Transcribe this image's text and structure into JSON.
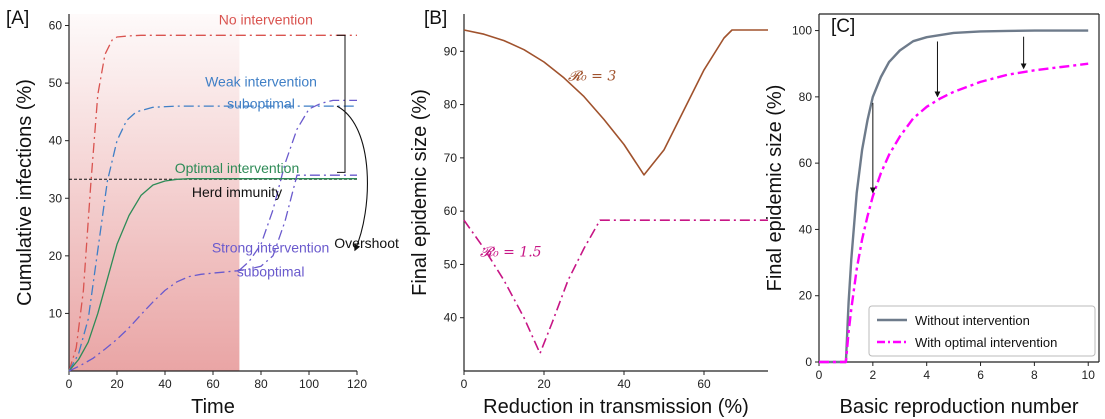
{
  "chart_data": [
    {
      "type": "line",
      "panel": "[A]",
      "xlabel": "Time",
      "ylabel": "Cumulative infections (%)",
      "xlim": [
        0,
        120
      ],
      "ylim": [
        0,
        62
      ],
      "xticks": [
        0,
        20,
        40,
        60,
        80,
        100,
        120
      ],
      "yticks": [
        10,
        20,
        30,
        40,
        50,
        60
      ],
      "shaded_region_x": [
        0,
        71
      ],
      "herd_immunity_level": 33.3,
      "colors": {
        "no": "#d9534f",
        "weak": "#3f7fc6",
        "opt": "#2e8b57",
        "strong": "#6a5acd",
        "shade": "#e8a0a0"
      },
      "series": [
        {
          "name": "No intervention",
          "style": "dashdot",
          "color": "#d9534f",
          "x": [
            0,
            3,
            6,
            9,
            12,
            15,
            18,
            20,
            25,
            30,
            40,
            60,
            80,
            100,
            120
          ],
          "y": [
            0,
            4,
            14,
            32,
            48,
            55,
            57.5,
            58,
            58.2,
            58.3,
            58.3,
            58.3,
            58.3,
            58.3,
            58.3
          ]
        },
        {
          "name": "Weak intervention suboptimal",
          "style": "dashdot",
          "color": "#3f7fc6",
          "x": [
            0,
            4,
            8,
            12,
            16,
            20,
            24,
            28,
            35,
            45,
            60,
            80,
            100,
            120
          ],
          "y": [
            0,
            3,
            9,
            21,
            33,
            40,
            43.5,
            45,
            45.8,
            46,
            46,
            46,
            46,
            46
          ]
        },
        {
          "name": "Weak intervention suboptimal (continued)",
          "style": "dashdot",
          "color": "#6a5acd",
          "x": [
            71,
            75,
            80,
            85,
            90,
            95,
            100,
            105,
            110,
            115,
            120
          ],
          "y": [
            17.5,
            19,
            22,
            28,
            36,
            42,
            45.5,
            46.5,
            47,
            47,
            47
          ]
        },
        {
          "name": "Optimal intervention",
          "style": "solid",
          "color": "#2e8b57",
          "x": [
            0,
            4,
            8,
            12,
            16,
            20,
            25,
            30,
            35,
            40,
            45,
            50,
            60,
            80,
            100,
            120
          ],
          "y": [
            0,
            2,
            5,
            10,
            16,
            22,
            27,
            30.5,
            32.3,
            33,
            33.3,
            33.4,
            33.4,
            33.4,
            33.4,
            33.4
          ]
        },
        {
          "name": "Strong intervention suboptimal",
          "style": "dashdot",
          "color": "#6a5acd",
          "x": [
            0,
            5,
            10,
            15,
            20,
            25,
            30,
            35,
            40,
            45,
            50,
            55,
            60,
            65,
            70,
            75,
            80,
            85,
            90,
            95,
            100,
            105,
            110,
            115,
            120
          ],
          "y": [
            0,
            1,
            2.2,
            3.8,
            5.5,
            7.5,
            9.8,
            12,
            14,
            15.5,
            16.4,
            16.8,
            17,
            17.2,
            17.4,
            17.7,
            18.2,
            20,
            26,
            34,
            34,
            34,
            34,
            34,
            34
          ]
        }
      ],
      "annotations": {
        "no": "No intervention",
        "weak1": "Weak intervention",
        "weak2": "suboptimal",
        "opt": "Optimal intervention",
        "herd": "Herd immunity",
        "strong1": "Strong intervention",
        "strong2": "suboptimal",
        "overshoot": "Overshoot"
      }
    },
    {
      "type": "line",
      "panel": "[B]",
      "xlabel": "Reduction in transmission (%)",
      "ylabel": "Final epidemic size (%)",
      "xlim": [
        0,
        76
      ],
      "ylim": [
        30,
        97
      ],
      "xticks": [
        0,
        20,
        40,
        60
      ],
      "yticks": [
        40,
        50,
        60,
        70,
        80,
        90
      ],
      "series": [
        {
          "name": "R0 = 3",
          "style": "solid",
          "color": "#a0522d",
          "x": [
            0,
            5,
            10,
            15,
            20,
            25,
            30,
            35,
            40,
            45,
            50,
            55,
            60,
            65,
            67,
            70,
            76
          ],
          "y": [
            94,
            93.2,
            92,
            90.3,
            88,
            85,
            81.5,
            77.2,
            72.5,
            66.8,
            71.5,
            79,
            86.5,
            92.5,
            94,
            94,
            94
          ]
        },
        {
          "name": "R0 = 1.5",
          "style": "dashdot",
          "color": "#c71585",
          "x": [
            0,
            5,
            10,
            15,
            19,
            22,
            26,
            30,
            34,
            40,
            50,
            60,
            70,
            76
          ],
          "y": [
            58.3,
            53,
            47,
            40,
            33.3,
            39,
            47,
            53,
            58.3,
            58.3,
            58.3,
            58.3,
            58.3,
            58.3
          ]
        }
      ],
      "annotations": {
        "r3": "𝓡₀ = 3",
        "r15": "𝓡₀ = 1.5"
      }
    },
    {
      "type": "line",
      "panel": "[C]",
      "xlabel": "Basic reproduction number",
      "ylabel": "Final epidemic size (%)",
      "xlim": [
        0,
        10.4
      ],
      "ylim": [
        0,
        105
      ],
      "xticks": [
        0,
        2,
        4,
        6,
        8,
        10
      ],
      "yticks": [
        0,
        20,
        40,
        60,
        80,
        100
      ],
      "legend_position": "bottom-right",
      "series": [
        {
          "name": "Without intervention",
          "style": "solid",
          "color": "#6e7b8b",
          "x": [
            0,
            0.9,
            1.0,
            1.1,
            1.2,
            1.4,
            1.6,
            1.8,
            2.0,
            2.3,
            2.6,
            3.0,
            3.5,
            4.0,
            5.0,
            6.0,
            7.0,
            8.0,
            10.0
          ],
          "y": [
            0,
            0,
            0,
            18,
            31,
            51,
            64,
            73,
            80,
            86,
            90.5,
            94,
            96.8,
            98,
            99.3,
            99.75,
            99.9,
            100,
            100
          ]
        },
        {
          "name": "With optimal intervention",
          "style": "dashdot",
          "color": "#ff00ff",
          "x": [
            0,
            0.9,
            1.0,
            1.1,
            1.2,
            1.4,
            1.6,
            1.8,
            2.0,
            2.3,
            2.6,
            3.0,
            3.5,
            4.0,
            4.5,
            5.0,
            6.0,
            7.0,
            8.0,
            9.0,
            10.0
          ],
          "y": [
            0,
            0,
            0,
            9,
            16,
            28,
            37,
            44,
            50,
            57,
            62.5,
            68,
            73.5,
            77,
            79.5,
            81.5,
            84.5,
            86.7,
            88,
            89,
            90
          ]
        }
      ],
      "arrows_x": [
        2,
        4.4,
        7.6
      ]
    }
  ]
}
